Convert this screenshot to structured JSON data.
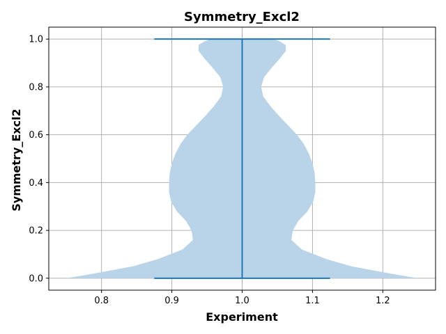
{
  "chart_data": {
    "type": "violin",
    "title": "Symmetry_Excl2",
    "xlabel": "Experiment",
    "ylabel": "Symmetry_Excl2",
    "xlim": [
      0.725,
      1.275
    ],
    "ylim": [
      -0.05,
      1.05
    ],
    "xticks": [
      0.8,
      0.9,
      1.0,
      1.1,
      1.2
    ],
    "xtick_labels": [
      "0.8",
      "0.9",
      "1.0",
      "1.1",
      "1.2"
    ],
    "yticks": [
      0.0,
      0.2,
      0.4,
      0.6,
      0.8,
      1.0
    ],
    "ytick_labels": [
      "0.0",
      "0.2",
      "0.4",
      "0.6",
      "0.8",
      "1.0"
    ],
    "grid": true,
    "violin": {
      "position": 1.0,
      "fill_color": "#b9d4e8",
      "line_color": "#1f77b4",
      "min": 0.0,
      "max": 1.0,
      "extrema_cap_halfwidth": 0.125,
      "profile": [
        [
          0.0,
          0.25
        ],
        [
          0.02,
          0.21
        ],
        [
          0.05,
          0.155
        ],
        [
          0.08,
          0.12
        ],
        [
          0.12,
          0.085
        ],
        [
          0.16,
          0.07
        ],
        [
          0.2,
          0.072
        ],
        [
          0.24,
          0.08
        ],
        [
          0.28,
          0.093
        ],
        [
          0.32,
          0.101
        ],
        [
          0.36,
          0.104
        ],
        [
          0.4,
          0.104
        ],
        [
          0.44,
          0.103
        ],
        [
          0.48,
          0.1
        ],
        [
          0.52,
          0.095
        ],
        [
          0.56,
          0.088
        ],
        [
          0.6,
          0.078
        ],
        [
          0.64,
          0.065
        ],
        [
          0.68,
          0.052
        ],
        [
          0.72,
          0.04
        ],
        [
          0.76,
          0.03
        ],
        [
          0.8,
          0.027
        ],
        [
          0.84,
          0.031
        ],
        [
          0.88,
          0.042
        ],
        [
          0.92,
          0.054
        ],
        [
          0.95,
          0.062
        ],
        [
          0.975,
          0.062
        ],
        [
          0.99,
          0.054
        ],
        [
          1.0,
          0.045
        ]
      ]
    }
  }
}
